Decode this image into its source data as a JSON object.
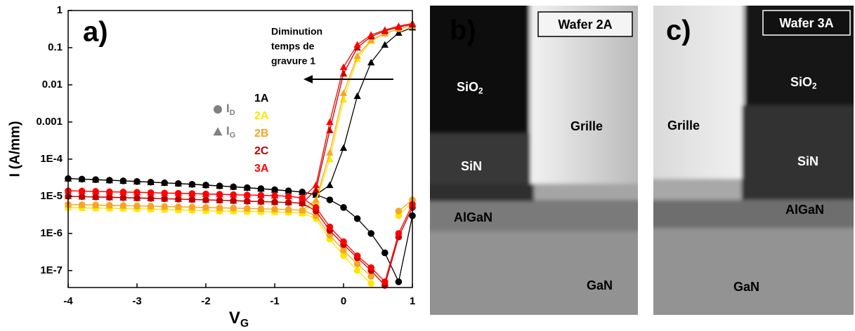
{
  "chart_data": {
    "type": "scatter-line",
    "panel": "a)",
    "x_label": {
      "text": "V",
      "sub": "G"
    },
    "y_label": "I (A/mm)",
    "log_y": true,
    "xlim": [
      -4,
      1
    ],
    "xticks": [
      -4,
      -3,
      -2,
      -1,
      0,
      1
    ],
    "ylim": [
      3.5e-08,
      1
    ],
    "yticks": [
      1,
      0.1,
      0.01,
      0.001,
      {
        "value": 0.0001,
        "label": "1E-4"
      },
      {
        "value": 1e-05,
        "label": "1E-5"
      },
      {
        "value": 1e-06,
        "label": "1E-6"
      },
      {
        "value": 1e-07,
        "label": "1E-7"
      }
    ],
    "markers": [
      {
        "shape": "circle",
        "text": "I",
        "sub": "D"
      },
      {
        "shape": "triangle",
        "text": "I",
        "sub": "G"
      }
    ],
    "x": [
      -4,
      -3.8,
      -3.6,
      -3.4,
      -3.2,
      -3,
      -2.8,
      -2.6,
      -2.4,
      -2.2,
      -2,
      -1.8,
      -1.6,
      -1.4,
      -1.2,
      -1,
      -0.8,
      -0.6,
      -0.4,
      -0.2,
      0,
      0.2,
      0.4,
      0.6,
      0.8,
      1
    ],
    "series": [
      {
        "name": "1A",
        "color": "#000000",
        "values": [
          3e-05,
          2.9e-05,
          2.8e-05,
          2.7e-05,
          2.6e-05,
          2.5e-05,
          2.4e-05,
          2.3e-05,
          2.2e-05,
          2.1e-05,
          2e-05,
          1.9e-05,
          1.8e-05,
          1.7e-05,
          1.6e-05,
          1.5e-05,
          1.4e-05,
          1.3e-05,
          1.1e-05,
          8e-06,
          5e-06,
          2.5e-06,
          1e-06,
          3e-07,
          5e-08,
          3e-06
        ],
        "ig_values": [
          3e-05,
          2.9e-05,
          2.8e-05,
          2.7e-05,
          2.6e-05,
          2.5e-05,
          2.4e-05,
          2.3e-05,
          2.2e-05,
          2.1e-05,
          2e-05,
          1.9e-05,
          1.8e-05,
          1.7e-05,
          1.6e-05,
          1.5e-05,
          1.4e-05,
          1.3e-05,
          1.1e-05,
          2e-05,
          0.0002,
          0.005,
          0.04,
          0.12,
          0.25,
          0.35
        ]
      },
      {
        "name": "2A",
        "color": "#ffe600",
        "values": [
          5e-06,
          4.9e-06,
          4.8e-06,
          4.75e-06,
          4.7e-06,
          4.6e-06,
          4.5e-06,
          4.4e-06,
          4.3e-06,
          4.2e-06,
          4.1e-06,
          4e-06,
          3.95e-06,
          3.9e-06,
          3.85e-06,
          3.8e-06,
          3.7e-06,
          3.5e-06,
          2.5e-06,
          7e-07,
          2.5e-07,
          1e-07,
          4.5e-08,
          null,
          3e-06,
          7e-06
        ],
        "ig_values": [
          5e-06,
          4.9e-06,
          4.8e-06,
          4.75e-06,
          4.7e-06,
          4.6e-06,
          4.5e-06,
          4.4e-06,
          4.3e-06,
          4.2e-06,
          4.1e-06,
          4e-06,
          3.95e-06,
          3.9e-06,
          3.85e-06,
          3.8e-06,
          3.7e-06,
          3.5e-06,
          7e-06,
          0.0001,
          0.004,
          0.05,
          0.15,
          0.24,
          0.32,
          0.38
        ]
      },
      {
        "name": "2B",
        "color": "#f5a623",
        "values": [
          6e-06,
          5.9e-06,
          5.8e-06,
          5.7e-06,
          5.6e-06,
          5.5e-06,
          5.4e-06,
          5.3e-06,
          5.2e-06,
          5.1e-06,
          5e-06,
          4.9e-06,
          4.8e-06,
          4.7e-06,
          4.6e-06,
          4.5e-06,
          4.4e-06,
          4.2e-06,
          3e-06,
          9e-07,
          3.5e-07,
          1.5e-07,
          7e-08,
          null,
          4e-06,
          8e-06
        ],
        "ig_values": [
          6e-06,
          5.9e-06,
          5.8e-06,
          5.7e-06,
          5.6e-06,
          5.5e-06,
          5.4e-06,
          5.3e-06,
          5.2e-06,
          5.1e-06,
          5e-06,
          4.9e-06,
          4.8e-06,
          4.7e-06,
          4.6e-06,
          4.5e-06,
          4.4e-06,
          4.2e-06,
          8e-06,
          0.00015,
          0.006,
          0.06,
          0.16,
          0.24,
          0.32,
          0.38
        ]
      },
      {
        "name": "2C",
        "color": "#c00000",
        "values": [
          1e-05,
          9.8e-06,
          9.6e-06,
          9.4e-06,
          9.2e-06,
          9e-06,
          8.8e-06,
          8.6e-06,
          8.4e-06,
          8.2e-06,
          8e-06,
          7.8e-06,
          7.6e-06,
          7.4e-06,
          7.2e-06,
          7e-06,
          6.8e-06,
          6.5e-06,
          4e-06,
          1.2e-06,
          5e-07,
          2.2e-07,
          1e-07,
          4e-08,
          8e-07,
          5e-06
        ],
        "ig_values": [
          1e-05,
          9.8e-06,
          9.6e-06,
          9.4e-06,
          9.2e-06,
          9e-06,
          8.8e-06,
          8.6e-06,
          8.4e-06,
          8.2e-06,
          8e-06,
          7.8e-06,
          7.6e-06,
          7.4e-06,
          7.2e-06,
          7e-06,
          6.8e-06,
          6.5e-06,
          1.5e-05,
          0.0006,
          0.02,
          0.1,
          0.2,
          0.28,
          0.36,
          0.42
        ]
      },
      {
        "name": "3A",
        "color": "#ff0000",
        "values": [
          1.4e-05,
          1.38e-05,
          1.35e-05,
          1.32e-05,
          1.3e-05,
          1.28e-05,
          1.25e-05,
          1.22e-05,
          1.2e-05,
          1.18e-05,
          1.15e-05,
          1.13e-05,
          1.1e-05,
          1.08e-05,
          1.06e-05,
          1.04e-05,
          1e-05,
          9e-06,
          5e-06,
          1.5e-06,
          6e-07,
          2.5e-07,
          1.2e-07,
          5e-08,
          1e-06,
          6e-06
        ],
        "ig_values": [
          1.4e-05,
          1.38e-05,
          1.35e-05,
          1.32e-05,
          1.3e-05,
          1.28e-05,
          1.25e-05,
          1.22e-05,
          1.2e-05,
          1.18e-05,
          1.15e-05,
          1.13e-05,
          1.1e-05,
          1.08e-05,
          1.06e-05,
          1.04e-05,
          1e-05,
          9e-06,
          2e-05,
          0.001,
          0.03,
          0.12,
          0.22,
          0.3,
          0.38,
          0.45
        ]
      }
    ],
    "annotation": [
      "Diminution",
      "temps de",
      "gravure 1"
    ]
  },
  "images": [
    {
      "panel": "b)",
      "wafer": "Wafer 2A",
      "labels": [
        {
          "text": "SiO",
          "sub": "2"
        },
        {
          "text": "SiN"
        },
        {
          "text": "Grille"
        },
        {
          "text": "AlGaN"
        },
        {
          "text": "GaN"
        }
      ]
    },
    {
      "panel": "c)",
      "wafer": "Wafer 3A",
      "labels": [
        {
          "text": "SiO",
          "sub": "2"
        },
        {
          "text": "SiN"
        },
        {
          "text": "Grille"
        },
        {
          "text": "AlGaN"
        },
        {
          "text": "GaN"
        }
      ]
    }
  ]
}
